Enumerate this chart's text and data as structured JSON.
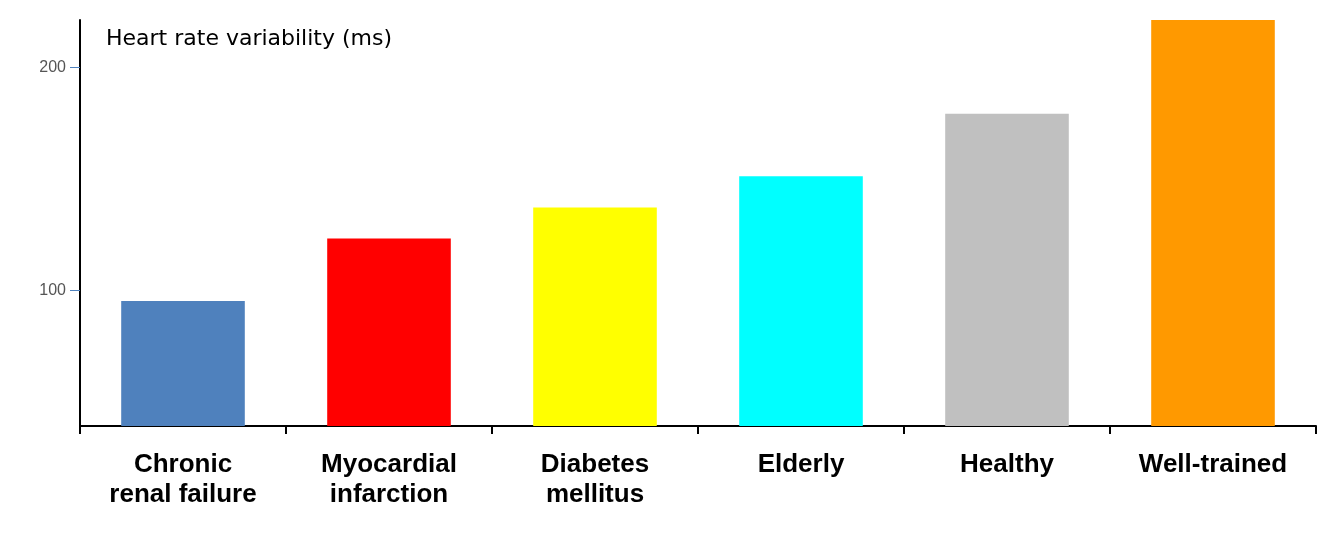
{
  "chart_data": {
    "type": "bar",
    "ylabel": "Heart rate variability (ms)",
    "categories": [
      "Chronic\nrenal failure",
      "Myocardial\ninfarction",
      "Diabetes\nmellitus",
      "Elderly",
      "Healthy",
      "Well-trained"
    ],
    "values": [
      95,
      123,
      137,
      151,
      179,
      221
    ],
    "colors": [
      "#4f81bd",
      "#ff0000",
      "#ffff00",
      "#00ffff",
      "#c0c0c0",
      "#ff9900"
    ],
    "ylim": [
      39,
      221
    ],
    "yticks": [
      100,
      200
    ],
    "grid": false
  }
}
